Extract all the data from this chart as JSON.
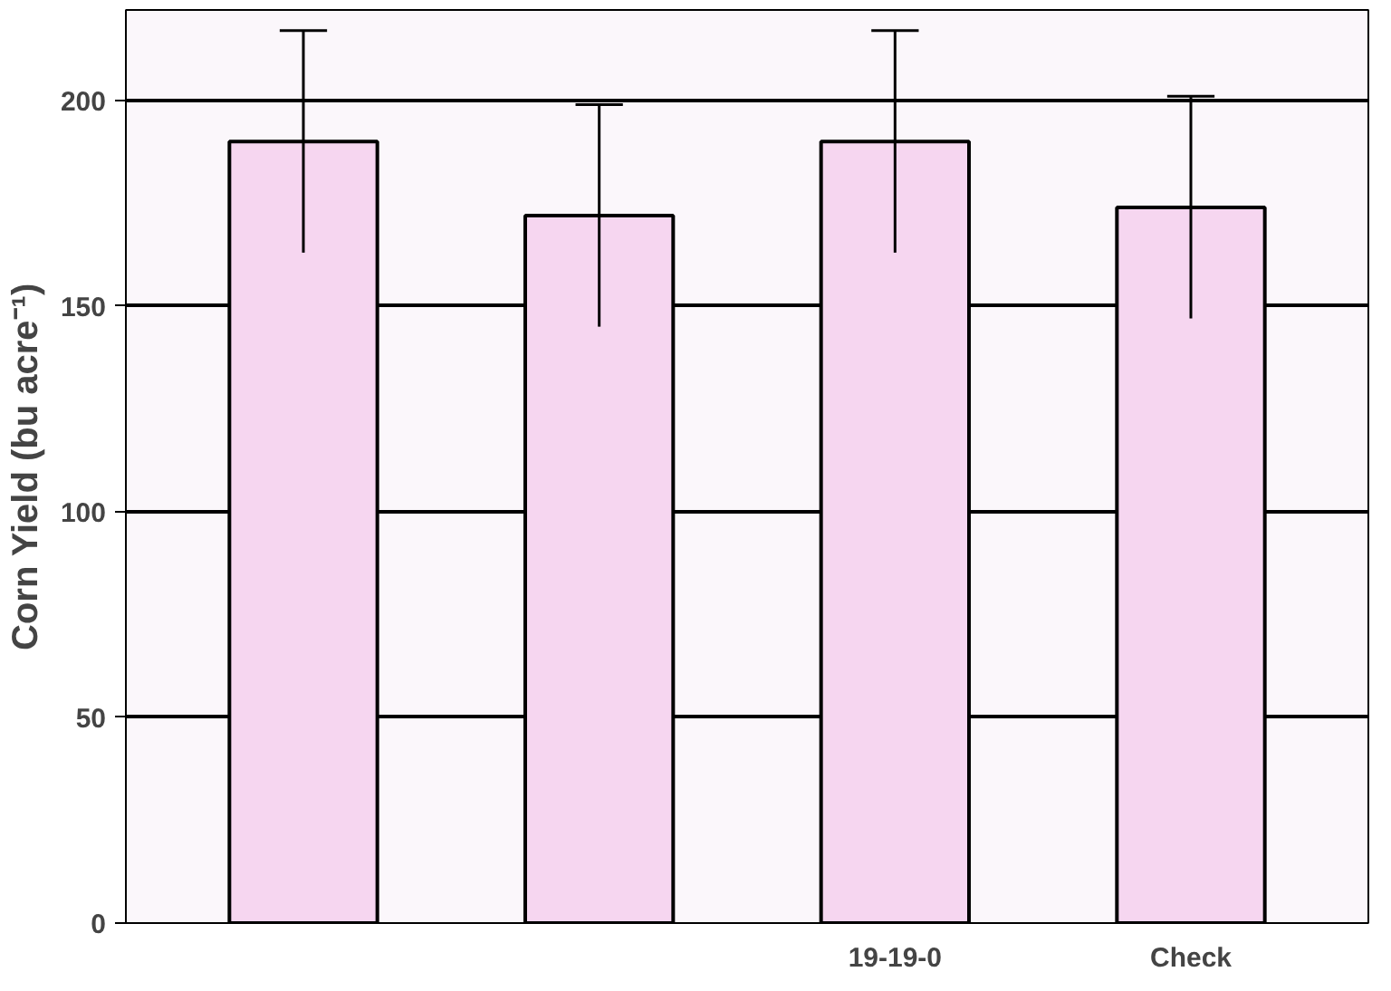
{
  "chart_data": {
    "type": "bar",
    "ylabel": "Corn Yield (bu acre⁻¹)",
    "categories": [
      null,
      null,
      "19-19-0",
      "Check"
    ],
    "values": [
      190,
      172,
      190,
      174
    ],
    "errors": [
      27,
      27,
      27,
      27
    ],
    "color": "#f6d6f0",
    "ylim": [
      0,
      222
    ],
    "yticks": [
      0,
      50,
      100,
      150,
      200
    ],
    "grid": "y"
  }
}
